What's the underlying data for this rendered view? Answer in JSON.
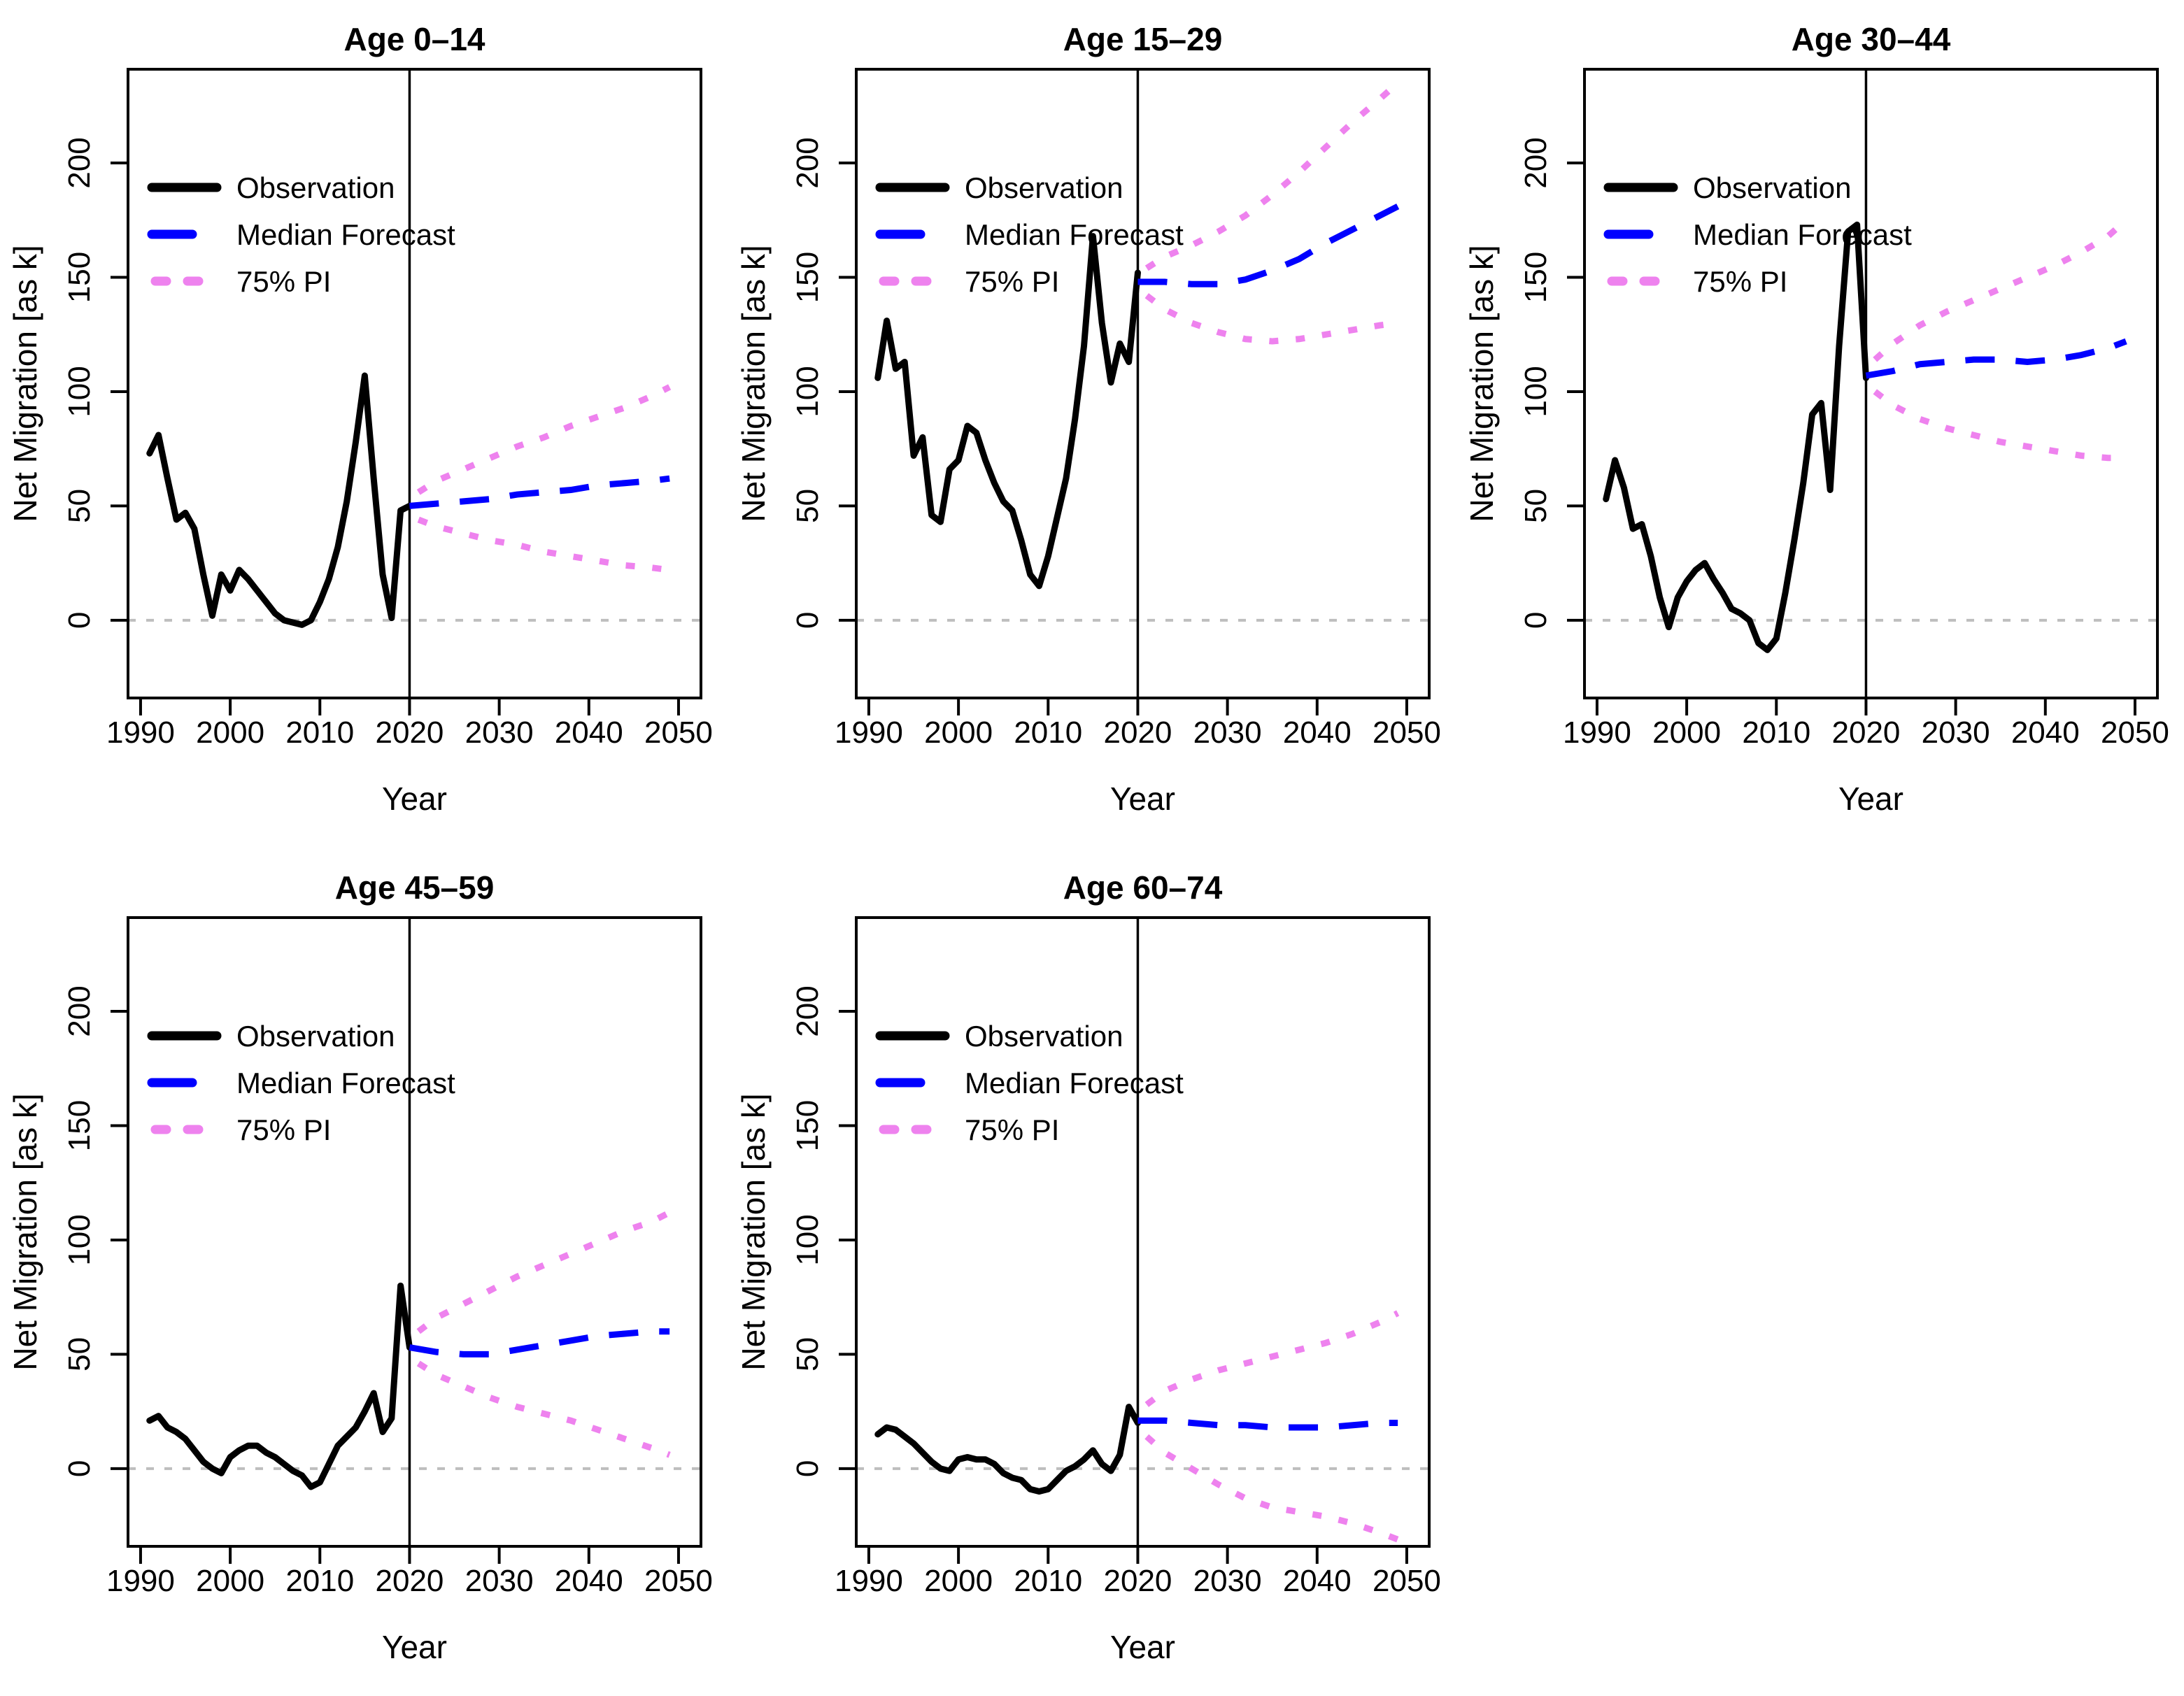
{
  "figure": {
    "kind": "multi-panel line chart, 3 columns x 2 rows, last cell empty",
    "background": "#ffffff"
  },
  "colors": {
    "observation": "#000000",
    "median_forecast": "#0000ff",
    "pi": "#ee82ee",
    "zero_line": "#bebebe",
    "frame": "#000000"
  },
  "legend": {
    "position": "top-left",
    "items": [
      {
        "label": "Observation",
        "style": "solid",
        "color": "#000000"
      },
      {
        "label": "Median Forecast",
        "style": "dashed",
        "color": "#0000ff"
      },
      {
        "label": "75% PI",
        "style": "dotted",
        "color": "#ee82ee"
      }
    ]
  },
  "axes": {
    "xlabel": "Year",
    "ylabel": "Net Migration [as k]",
    "x_ticks": [
      1990,
      2000,
      2010,
      2020,
      2030,
      2040,
      2050
    ],
    "y_ticks": [
      0,
      50,
      100,
      150,
      200
    ],
    "xlim": [
      1988.6,
      2052.5
    ],
    "ylim": [
      -34,
      241
    ],
    "grid": false,
    "zero_line_y": 0,
    "forecast_start_x": 2020
  },
  "chart_data": [
    {
      "type": "line",
      "title": "Age 0–14",
      "series": [
        {
          "name": "Observation",
          "x": [
            1991,
            1992,
            1993,
            1994,
            1995,
            1996,
            1997,
            1998,
            1999,
            2000,
            2001,
            2002,
            2003,
            2004,
            2005,
            2006,
            2007,
            2008,
            2009,
            2010,
            2011,
            2012,
            2013,
            2014,
            2015,
            2016,
            2017,
            2018,
            2019,
            2020
          ],
          "y": [
            73,
            81,
            62,
            44,
            47,
            40,
            20,
            2,
            20,
            13,
            22,
            18,
            13,
            8,
            3,
            0,
            -1,
            -2,
            0,
            8,
            18,
            32,
            52,
            78,
            107,
            62,
            20,
            1,
            48,
            50
          ]
        },
        {
          "name": "Median Forecast",
          "x": [
            2020,
            2023,
            2026,
            2029,
            2032,
            2035,
            2038,
            2041,
            2044,
            2047,
            2049
          ],
          "y": [
            50,
            51,
            52,
            53,
            55,
            56,
            57,
            59,
            60,
            61,
            62
          ]
        },
        {
          "name": "75% PI upper",
          "x": [
            2021,
            2023,
            2026,
            2029,
            2032,
            2035,
            2038,
            2041,
            2044,
            2047,
            2049
          ],
          "y": [
            56,
            61,
            66,
            71,
            76,
            80,
            85,
            89,
            93,
            98,
            102
          ]
        },
        {
          "name": "75% PI lower",
          "x": [
            2021,
            2023,
            2026,
            2029,
            2032,
            2035,
            2038,
            2041,
            2044,
            2047,
            2049
          ],
          "y": [
            44,
            41,
            38,
            35,
            33,
            30,
            28,
            26,
            24,
            23,
            22
          ]
        }
      ]
    },
    {
      "type": "line",
      "title": "Age 15–29",
      "series": [
        {
          "name": "Observation",
          "x": [
            1991,
            1992,
            1993,
            1994,
            1995,
            1996,
            1997,
            1998,
            1999,
            2000,
            2001,
            2002,
            2003,
            2004,
            2005,
            2006,
            2007,
            2008,
            2009,
            2010,
            2011,
            2012,
            2013,
            2014,
            2015,
            2016,
            2017,
            2018,
            2019,
            2020
          ],
          "y": [
            106,
            131,
            110,
            113,
            72,
            80,
            46,
            43,
            66,
            70,
            85,
            82,
            70,
            60,
            52,
            48,
            35,
            20,
            15,
            28,
            45,
            62,
            88,
            120,
            168,
            130,
            104,
            121,
            113,
            152
          ]
        },
        {
          "name": "Median Forecast",
          "x": [
            2020,
            2023,
            2026,
            2029,
            2032,
            2035,
            2038,
            2041,
            2044,
            2047,
            2049
          ],
          "y": [
            148,
            148,
            147,
            147,
            149,
            153,
            158,
            165,
            171,
            177,
            181
          ]
        },
        {
          "name": "75% PI upper",
          "x": [
            2021,
            2023,
            2026,
            2029,
            2032,
            2035,
            2038,
            2041,
            2044,
            2047,
            2049
          ],
          "y": [
            154,
            159,
            164,
            170,
            177,
            186,
            196,
            207,
            218,
            228,
            235
          ]
        },
        {
          "name": "75% PI lower",
          "x": [
            2021,
            2023,
            2026,
            2029,
            2032,
            2035,
            2038,
            2041,
            2044,
            2047,
            2049
          ],
          "y": [
            142,
            136,
            130,
            126,
            123,
            122,
            123,
            125,
            127,
            129,
            130
          ]
        }
      ]
    },
    {
      "type": "line",
      "title": "Age 30–44",
      "series": [
        {
          "name": "Observation",
          "x": [
            1991,
            1992,
            1993,
            1994,
            1995,
            1996,
            1997,
            1998,
            1999,
            2000,
            2001,
            2002,
            2003,
            2004,
            2005,
            2006,
            2007,
            2008,
            2009,
            2010,
            2011,
            2012,
            2013,
            2014,
            2015,
            2016,
            2017,
            2018,
            2019,
            2020
          ],
          "y": [
            53,
            70,
            58,
            40,
            42,
            28,
            10,
            -3,
            10,
            17,
            22,
            25,
            18,
            12,
            5,
            3,
            0,
            -10,
            -13,
            -8,
            12,
            35,
            60,
            90,
            95,
            57,
            120,
            170,
            173,
            106
          ]
        },
        {
          "name": "Median Forecast",
          "x": [
            2020,
            2023,
            2026,
            2029,
            2032,
            2035,
            2038,
            2041,
            2044,
            2047,
            2049
          ],
          "y": [
            107,
            109,
            112,
            113,
            114,
            114,
            113,
            114,
            116,
            119,
            122
          ]
        },
        {
          "name": "75% PI upper",
          "x": [
            2021,
            2023,
            2026,
            2029,
            2032,
            2035,
            2038,
            2041,
            2044,
            2047,
            2049
          ],
          "y": [
            114,
            121,
            129,
            135,
            140,
            145,
            150,
            155,
            161,
            168,
            175
          ]
        },
        {
          "name": "75% PI lower",
          "x": [
            2021,
            2023,
            2026,
            2029,
            2032,
            2035,
            2038,
            2041,
            2044,
            2047,
            2049
          ],
          "y": [
            100,
            94,
            88,
            84,
            81,
            78,
            76,
            74,
            72,
            71,
            71
          ]
        }
      ]
    },
    {
      "type": "line",
      "title": "Age 45–59",
      "series": [
        {
          "name": "Observation",
          "x": [
            1991,
            1992,
            1993,
            1994,
            1995,
            1996,
            1997,
            1998,
            1999,
            2000,
            2001,
            2002,
            2003,
            2004,
            2005,
            2006,
            2007,
            2008,
            2009,
            2010,
            2011,
            2012,
            2013,
            2014,
            2015,
            2016,
            2017,
            2018,
            2019,
            2020
          ],
          "y": [
            21,
            23,
            18,
            16,
            13,
            8,
            3,
            0,
            -2,
            5,
            8,
            10,
            10,
            7,
            5,
            2,
            -1,
            -3,
            -8,
            -6,
            2,
            10,
            14,
            18,
            25,
            33,
            16,
            22,
            80,
            53
          ]
        },
        {
          "name": "Median Forecast",
          "x": [
            2020,
            2023,
            2026,
            2029,
            2032,
            2035,
            2038,
            2041,
            2044,
            2047,
            2049
          ],
          "y": [
            53,
            51,
            50,
            50,
            52,
            54,
            56,
            58,
            59,
            60,
            60
          ]
        },
        {
          "name": "75% PI upper",
          "x": [
            2021,
            2023,
            2026,
            2029,
            2032,
            2035,
            2038,
            2041,
            2044,
            2047,
            2049
          ],
          "y": [
            60,
            66,
            72,
            78,
            84,
            89,
            94,
            99,
            104,
            108,
            112
          ]
        },
        {
          "name": "75% PI lower",
          "x": [
            2021,
            2023,
            2026,
            2029,
            2032,
            2035,
            2038,
            2041,
            2044,
            2047,
            2049
          ],
          "y": [
            46,
            41,
            36,
            31,
            27,
            24,
            21,
            17,
            13,
            9,
            6
          ]
        }
      ]
    },
    {
      "type": "line",
      "title": "Age 60–74",
      "series": [
        {
          "name": "Observation",
          "x": [
            1991,
            1992,
            1993,
            1994,
            1995,
            1996,
            1997,
            1998,
            1999,
            2000,
            2001,
            2002,
            2003,
            2004,
            2005,
            2006,
            2007,
            2008,
            2009,
            2010,
            2011,
            2012,
            2013,
            2014,
            2015,
            2016,
            2017,
            2018,
            2019,
            2020
          ],
          "y": [
            15,
            18,
            17,
            14,
            11,
            7,
            3,
            0,
            -1,
            4,
            5,
            4,
            4,
            2,
            -2,
            -4,
            -5,
            -9,
            -10,
            -9,
            -5,
            -1,
            1,
            4,
            8,
            2,
            -1,
            6,
            27,
            20
          ]
        },
        {
          "name": "Median Forecast",
          "x": [
            2020,
            2023,
            2026,
            2029,
            2032,
            2035,
            2038,
            2041,
            2044,
            2047,
            2049
          ],
          "y": [
            21,
            21,
            20,
            19,
            19,
            18,
            18,
            18,
            19,
            20,
            20
          ]
        },
        {
          "name": "75% PI upper",
          "x": [
            2021,
            2023,
            2026,
            2029,
            2032,
            2035,
            2038,
            2041,
            2044,
            2047,
            2049
          ],
          "y": [
            28,
            34,
            39,
            43,
            46,
            49,
            52,
            55,
            59,
            64,
            68
          ]
        },
        {
          "name": "75% PI lower",
          "x": [
            2021,
            2023,
            2026,
            2029,
            2032,
            2035,
            2038,
            2041,
            2044,
            2047,
            2049
          ],
          "y": [
            14,
            7,
            0,
            -7,
            -13,
            -17,
            -19,
            -21,
            -24,
            -28,
            -31
          ]
        }
      ]
    }
  ]
}
